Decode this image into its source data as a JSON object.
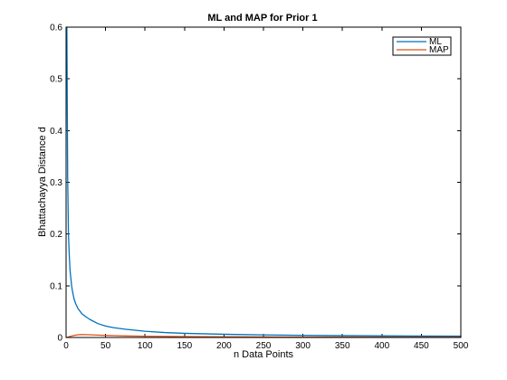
{
  "chart_data": {
    "type": "line",
    "title": "ML and MAP for Prior 1",
    "xlabel": "n Data Points",
    "ylabel": "Bhattachayya Distance d",
    "xlim": [
      0,
      500
    ],
    "ylim": [
      0,
      0.6
    ],
    "xticks": [
      0,
      50,
      100,
      150,
      200,
      250,
      300,
      350,
      400,
      450,
      500
    ],
    "yticks": [
      0,
      0.1,
      0.2,
      0.3,
      0.4,
      0.5,
      0.6
    ],
    "xtick_labels": [
      "0",
      "50",
      "100",
      "150",
      "200",
      "250",
      "300",
      "350",
      "400",
      "450",
      "500"
    ],
    "ytick_labels": [
      "0",
      "0.1",
      "0.2",
      "0.3",
      "0.4",
      "0.5",
      "0.6"
    ],
    "grid": false,
    "legend_position": "top-right",
    "series": [
      {
        "name": "ML",
        "color": "#0072BD",
        "x": [
          1,
          2,
          3,
          4,
          5,
          6,
          7,
          8,
          10,
          12,
          15,
          20,
          25,
          30,
          40,
          50,
          60,
          75,
          100,
          125,
          150,
          200,
          250,
          300,
          350,
          400,
          450,
          500
        ],
        "y": [
          0.6,
          0.31,
          0.2,
          0.16,
          0.13,
          0.115,
          0.1,
          0.09,
          0.075,
          0.066,
          0.056,
          0.046,
          0.04,
          0.035,
          0.027,
          0.022,
          0.019,
          0.016,
          0.012,
          0.0095,
          0.008,
          0.0062,
          0.005,
          0.0042,
          0.0036,
          0.0032,
          0.0028,
          0.0025
        ]
      },
      {
        "name": "MAP",
        "color": "#D95319",
        "x": [
          1,
          5,
          10,
          15,
          20,
          25,
          30,
          40,
          50,
          75,
          100,
          150,
          200,
          300,
          400,
          500
        ],
        "y": [
          0.0,
          0.002,
          0.004,
          0.0052,
          0.0056,
          0.0055,
          0.0052,
          0.0046,
          0.004,
          0.003,
          0.0024,
          0.0017,
          0.0013,
          0.0009,
          0.0007,
          0.0005
        ]
      }
    ]
  }
}
